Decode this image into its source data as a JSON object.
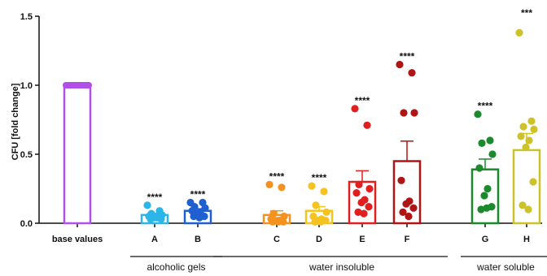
{
  "chart_data": {
    "type": "bar",
    "ylabel": "CFU [fold change]",
    "ylim": [
      0,
      1.5
    ],
    "yticks": [
      "0.0",
      "0.5",
      "1.0",
      "1.5"
    ],
    "error_bars": "mean ± SEM",
    "bars": [
      {
        "category": "base values",
        "mean": 1.0,
        "err": 0.0,
        "color": "#b14fe8",
        "sig": "",
        "points": [
          1.0,
          1.0,
          1.0,
          1.0,
          1.0,
          1.0,
          1.0,
          1.0,
          1.0,
          1.0
        ]
      },
      {
        "category": "A",
        "mean": 0.06,
        "err": 0.012,
        "color": "#2bb5e8",
        "sig": "****",
        "points": [
          0.13,
          0.09,
          0.07,
          0.06,
          0.05,
          0.04,
          0.04,
          0.03,
          0.03,
          0.05
        ]
      },
      {
        "category": "B",
        "mean": 0.09,
        "err": 0.015,
        "color": "#1f5fcf",
        "sig": "****",
        "points": [
          0.15,
          0.15,
          0.12,
          0.11,
          0.09,
          0.08,
          0.06,
          0.05,
          0.05,
          0.04
        ]
      },
      {
        "category": "C",
        "mean": 0.06,
        "err": 0.03,
        "color": "#f5921f",
        "sig": "****",
        "points": [
          0.28,
          0.26,
          0.07,
          0.05,
          0.03,
          0.02,
          0.02,
          0.01,
          0.01,
          0.01
        ]
      },
      {
        "category": "D",
        "mean": 0.09,
        "err": 0.03,
        "color": "#f5c21f",
        "sig": "****",
        "points": [
          0.27,
          0.23,
          0.13,
          0.08,
          0.05,
          0.03,
          0.02,
          0.02,
          0.01,
          0.01
        ]
      },
      {
        "category": "E",
        "mean": 0.3,
        "err": 0.08,
        "color": "#e02020",
        "sig": "****",
        "points": [
          0.83,
          0.71,
          0.28,
          0.25,
          0.22,
          0.17,
          0.15,
          0.12,
          0.08,
          0.07
        ]
      },
      {
        "category": "F",
        "mean": 0.45,
        "err": 0.145,
        "color": "#b01414",
        "sig": "****",
        "points": [
          1.15,
          1.09,
          0.8,
          0.8,
          0.31,
          0.16,
          0.14,
          0.11,
          0.08,
          0.05
        ]
      },
      {
        "category": "G",
        "mean": 0.39,
        "err": 0.075,
        "color": "#1a8a2a",
        "sig": "****",
        "points": [
          0.79,
          0.6,
          0.58,
          0.5,
          0.4,
          0.25,
          0.2,
          0.12,
          0.1,
          0.11
        ]
      },
      {
        "category": "H",
        "mean": 0.53,
        "err": 0.12,
        "color": "#cdc229",
        "sig": "***",
        "points": [
          1.38,
          0.74,
          0.7,
          0.68,
          0.63,
          0.6,
          0.55,
          0.3,
          0.13,
          0.1
        ]
      }
    ],
    "groups": [
      {
        "label": "alcoholic gels",
        "from": 1,
        "to": 2
      },
      {
        "label": "water insoluble",
        "from": 3,
        "to": 6
      },
      {
        "label": "water soluble",
        "from": 7,
        "to": 8
      }
    ]
  }
}
